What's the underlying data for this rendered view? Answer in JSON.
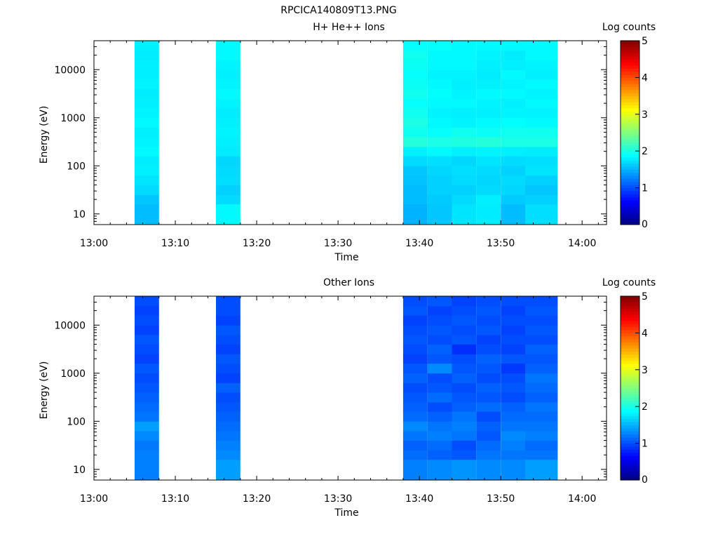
{
  "figure": {
    "title": "RPCICA140809T13.PNG"
  },
  "colorbar": {
    "label": "Log counts",
    "ticks": [
      "0",
      "1",
      "2",
      "3",
      "4",
      "5"
    ],
    "range": [
      0,
      5
    ]
  },
  "chart_data": [
    {
      "type": "heatmap",
      "title": "H+ He++ Ions",
      "xlabel": "Time",
      "ylabel": "Energy (eV)",
      "x_ticks": [
        "13:00",
        "13:10",
        "13:20",
        "13:30",
        "13:40",
        "13:50",
        "14:00"
      ],
      "x_range": [
        "13:00",
        "14:03"
      ],
      "y_scale": "log",
      "y_ticks": [
        "10",
        "100",
        "1000",
        "10000"
      ],
      "y_range": [
        6,
        40000
      ],
      "value_label": "Log counts",
      "value_range": [
        0,
        5
      ],
      "time_bins": [
        [
          "13:05",
          "13:08"
        ],
        [
          "13:15",
          "13:18"
        ],
        [
          "13:38",
          "13:41"
        ],
        [
          "13:41",
          "13:44"
        ],
        [
          "13:44",
          "13:47"
        ],
        [
          "13:47",
          "13:50"
        ],
        [
          "13:50",
          "13:53"
        ],
        [
          "13:53",
          "13:57"
        ]
      ],
      "energy_bins_eV": [
        6,
        10,
        16,
        25,
        40,
        63,
        100,
        160,
        250,
        400,
        630,
        1000,
        1600,
        2500,
        4000,
        6300,
        10000,
        16000,
        25000,
        40000
      ],
      "values_log_counts": [
        [
          1.55,
          1.55,
          1.6,
          1.7,
          1.75,
          1.8,
          1.78,
          1.85,
          1.82,
          1.8,
          1.85,
          1.82,
          1.8,
          1.78,
          1.82,
          1.8,
          1.8,
          1.78,
          1.8
        ],
        [
          1.85,
          1.85,
          1.7,
          1.65,
          1.72,
          1.7,
          1.68,
          1.78,
          1.8,
          1.82,
          1.8,
          1.78,
          1.82,
          1.85,
          1.82,
          1.8,
          1.82,
          1.85,
          1.85
        ],
        [
          1.5,
          1.5,
          1.55,
          1.55,
          1.58,
          1.6,
          1.7,
          1.8,
          2.05,
          1.95,
          2.0,
          1.95,
          1.9,
          1.95,
          1.92,
          1.9,
          1.92,
          1.95,
          1.9
        ],
        [
          1.6,
          1.6,
          1.62,
          1.65,
          1.65,
          1.68,
          1.72,
          1.85,
          2.0,
          1.9,
          1.85,
          1.82,
          1.85,
          1.88,
          1.85,
          1.82,
          1.85,
          1.85,
          1.9
        ],
        [
          1.75,
          1.75,
          1.7,
          1.65,
          1.7,
          1.72,
          1.68,
          1.8,
          2.02,
          1.95,
          1.82,
          1.8,
          1.85,
          1.82,
          1.8,
          1.82,
          1.85,
          1.85,
          1.85
        ],
        [
          1.78,
          1.78,
          1.8,
          1.7,
          1.68,
          1.7,
          1.75,
          1.82,
          2.05,
          1.92,
          1.85,
          1.8,
          1.82,
          1.85,
          1.8,
          1.78,
          1.8,
          1.82,
          1.85
        ],
        [
          1.55,
          1.55,
          1.62,
          1.68,
          1.7,
          1.65,
          1.7,
          1.8,
          2.0,
          1.95,
          1.88,
          1.82,
          1.8,
          1.85,
          1.82,
          1.85,
          1.8,
          1.78,
          1.85
        ],
        [
          1.72,
          1.72,
          1.65,
          1.6,
          1.65,
          1.75,
          1.72,
          1.78,
          2.0,
          1.95,
          1.85,
          1.82,
          1.85,
          1.82,
          1.85,
          1.8,
          1.82,
          1.85,
          1.85
        ]
      ]
    },
    {
      "type": "heatmap",
      "title": "Other Ions",
      "xlabel": "Time",
      "ylabel": "Energy (eV)",
      "x_ticks": [
        "13:00",
        "13:10",
        "13:20",
        "13:30",
        "13:40",
        "13:50",
        "14:00"
      ],
      "x_range": [
        "13:00",
        "14:03"
      ],
      "y_scale": "log",
      "y_ticks": [
        "10",
        "100",
        "1000",
        "10000"
      ],
      "y_range": [
        6,
        40000
      ],
      "value_label": "Log counts",
      "value_range": [
        0,
        5
      ],
      "time_bins": [
        [
          "13:05",
          "13:08"
        ],
        [
          "13:15",
          "13:18"
        ],
        [
          "13:38",
          "13:41"
        ],
        [
          "13:41",
          "13:44"
        ],
        [
          "13:44",
          "13:47"
        ],
        [
          "13:47",
          "13:50"
        ],
        [
          "13:50",
          "13:53"
        ],
        [
          "13:53",
          "13:57"
        ]
      ],
      "energy_bins_eV": [
        6,
        10,
        16,
        25,
        40,
        63,
        100,
        160,
        250,
        400,
        630,
        1000,
        1600,
        2500,
        4000,
        6300,
        10000,
        16000,
        25000,
        40000
      ],
      "values_log_counts": [
        [
          1.25,
          1.25,
          1.25,
          1.22,
          1.3,
          1.4,
          1.2,
          1.15,
          1.1,
          1.05,
          1.0,
          1.05,
          0.95,
          1.0,
          1.05,
          0.95,
          1.0,
          0.95,
          1.0
        ],
        [
          1.4,
          1.4,
          1.3,
          1.25,
          1.2,
          1.15,
          1.1,
          1.05,
          1.0,
          1.1,
          0.95,
          1.0,
          1.05,
          0.95,
          1.0,
          1.05,
          0.95,
          1.0,
          1.0
        ],
        [
          1.25,
          1.25,
          1.15,
          1.1,
          1.2,
          1.3,
          1.15,
          1.1,
          1.05,
          1.0,
          1.1,
          1.05,
          0.95,
          1.0,
          1.05,
          1.0,
          0.95,
          1.05,
          1.0
        ],
        [
          1.3,
          1.3,
          1.1,
          1.15,
          1.25,
          1.2,
          1.1,
          1.0,
          1.15,
          1.05,
          1.0,
          1.3,
          1.05,
          1.1,
          1.0,
          1.05,
          1.0,
          0.95,
          1.05
        ],
        [
          1.35,
          1.35,
          1.05,
          1.0,
          1.2,
          1.25,
          1.2,
          1.1,
          1.05,
          1.0,
          1.1,
          1.05,
          1.0,
          0.85,
          1.05,
          1.0,
          1.05,
          1.0,
          0.95
        ],
        [
          1.3,
          1.3,
          1.2,
          1.15,
          1.05,
          1.1,
          1.0,
          1.15,
          1.05,
          1.1,
          1.0,
          1.05,
          1.1,
          1.0,
          0.95,
          1.05,
          1.0,
          1.05,
          1.0
        ],
        [
          1.3,
          1.3,
          1.2,
          1.25,
          1.3,
          1.2,
          1.15,
          1.1,
          1.0,
          1.05,
          1.0,
          0.9,
          1.05,
          0.95,
          1.0,
          0.95,
          1.0,
          0.95,
          1.0
        ],
        [
          1.4,
          1.4,
          1.2,
          1.15,
          1.25,
          1.2,
          1.15,
          1.2,
          1.1,
          1.15,
          1.2,
          1.1,
          1.05,
          1.1,
          1.0,
          1.05,
          1.0,
          1.05,
          1.0
        ]
      ]
    }
  ]
}
